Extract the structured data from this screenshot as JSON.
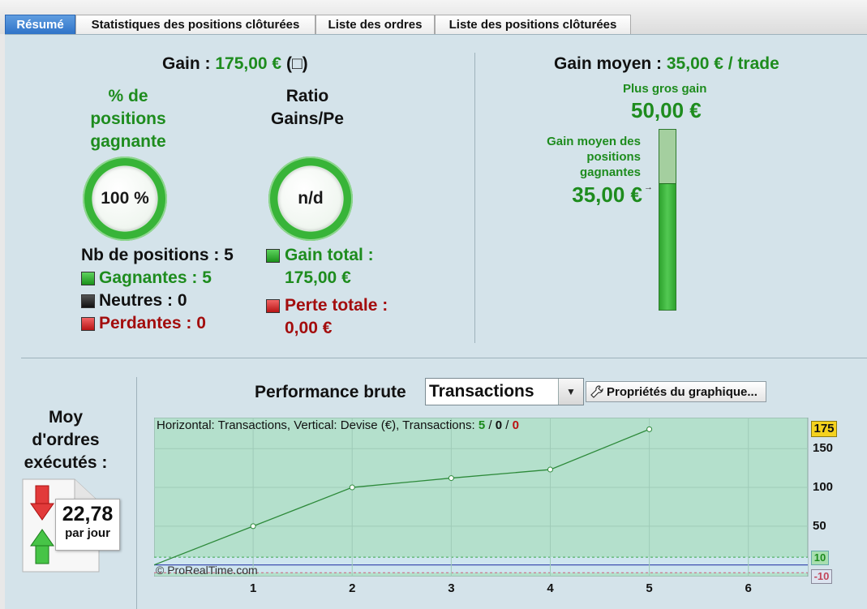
{
  "tabs": [
    {
      "label": "Résumé",
      "active": true
    },
    {
      "label": "Statistiques des positions clôturées",
      "active": false
    },
    {
      "label": "Liste des ordres",
      "active": false
    },
    {
      "label": "Liste des positions clôturées",
      "active": false
    }
  ],
  "summary": {
    "gain_label": "Gain :",
    "gain_value": "175,00 €",
    "gain_icon": "(□)",
    "pct_label_lines": [
      "% de",
      "positions",
      "gagnante"
    ],
    "pct_value": "100 %",
    "pct_ratio": 1.0,
    "ratio_label_lines": [
      "Ratio",
      "Gains/Pe"
    ],
    "ratio_value": "n/d",
    "nb_positions": "Nb de positions : 5",
    "gagnantes": "Gagnantes : 5",
    "neutres": "Neutres : 0",
    "perdantes": "Perdantes : 0",
    "gain_total_label": "Gain total :",
    "gain_total_value": "175,00 €",
    "perte_totale_label": "Perte totale :",
    "perte_totale_value": "0,00 €"
  },
  "gain_moyen": {
    "title_label": "Gain moyen :",
    "title_value": "35,00 € / trade",
    "plus_gros_label": "Plus gros gain",
    "plus_gros_value": "50,00 €",
    "moyen_gagnantes_lines": [
      "Gain moyen des",
      "positions",
      "gagnantes"
    ],
    "moyen_gagnantes_value": "35,00 €",
    "bar_fill_ratio": 0.7
  },
  "orders": {
    "label_lines": [
      "Moy",
      "d'ordres",
      "exécutés :"
    ],
    "value": "22,78",
    "unit": "par jour"
  },
  "performance": {
    "label": "Performance brute",
    "select_value": "Transactions",
    "properties_button": "Propriétés du graphique...",
    "chart_header": "Horizontal: Transactions, Vertical: Devise (€), Transactions:",
    "tx_win": "5",
    "tx_neutral": "0",
    "tx_loss": "0",
    "sep": "/",
    "watermark": "© ProRealTime.com"
  },
  "colors": {
    "accent_green": "#1e8c1e",
    "loss_red": "#a30d0d",
    "chart_bg": "#b4e0cc",
    "tab_active": "#2f73c8"
  },
  "chart_data": {
    "type": "line",
    "x": [
      0,
      1,
      2,
      3,
      4,
      5
    ],
    "y": [
      0,
      50,
      100,
      112,
      123,
      175
    ],
    "xticks": [
      1,
      2,
      3,
      4,
      5,
      6
    ],
    "yticks": [
      50,
      100,
      150
    ],
    "xlim": [
      0,
      6.6
    ],
    "ylim": [
      -15,
      190
    ],
    "current_value_label": "175",
    "upper_band_label": "10",
    "lower_band_label": "-10",
    "upper_band": 10,
    "lower_band": -10
  }
}
